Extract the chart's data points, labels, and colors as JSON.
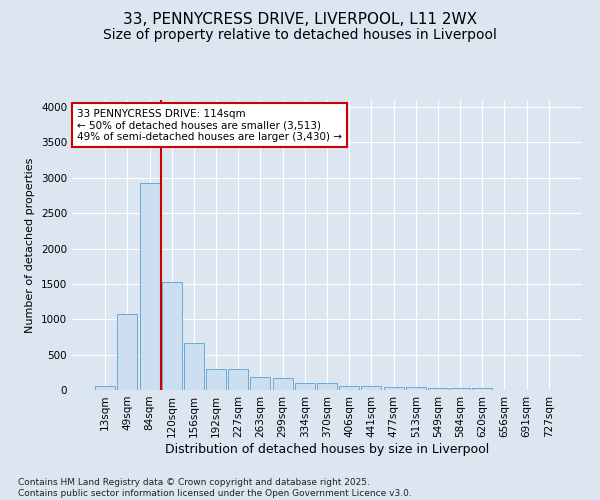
{
  "title": "33, PENNYCRESS DRIVE, LIVERPOOL, L11 2WX",
  "subtitle": "Size of property relative to detached houses in Liverpool",
  "xlabel": "Distribution of detached houses by size in Liverpool",
  "ylabel": "Number of detached properties",
  "categories": [
    "13sqm",
    "49sqm",
    "84sqm",
    "120sqm",
    "156sqm",
    "192sqm",
    "227sqm",
    "263sqm",
    "299sqm",
    "334sqm",
    "370sqm",
    "406sqm",
    "441sqm",
    "477sqm",
    "513sqm",
    "549sqm",
    "584sqm",
    "620sqm",
    "656sqm",
    "691sqm",
    "727sqm"
  ],
  "values": [
    60,
    1080,
    2920,
    1530,
    660,
    300,
    290,
    180,
    175,
    100,
    100,
    60,
    50,
    40,
    40,
    35,
    35,
    30,
    0,
    0,
    0
  ],
  "bar_color": "#ccdff0",
  "bar_edge_color": "#6aaad4",
  "vline_color": "#cc0000",
  "annotation_text": "33 PENNYCRESS DRIVE: 114sqm\n← 50% of detached houses are smaller (3,513)\n49% of semi-detached houses are larger (3,430) →",
  "annotation_box_facecolor": "#ffffff",
  "annotation_box_edge": "#cc0000",
  "ylim": [
    0,
    4100
  ],
  "yticks": [
    0,
    500,
    1000,
    1500,
    2000,
    2500,
    3000,
    3500,
    4000
  ],
  "bg_color": "#dce6f1",
  "plot_bg_color": "#dce6f1",
  "footer": "Contains HM Land Registry data © Crown copyright and database right 2025.\nContains public sector information licensed under the Open Government Licence v3.0.",
  "title_fontsize": 11,
  "subtitle_fontsize": 10,
  "xlabel_fontsize": 9,
  "ylabel_fontsize": 8,
  "tick_fontsize": 7.5,
  "footer_fontsize": 6.5,
  "ann_fontsize": 7.5
}
